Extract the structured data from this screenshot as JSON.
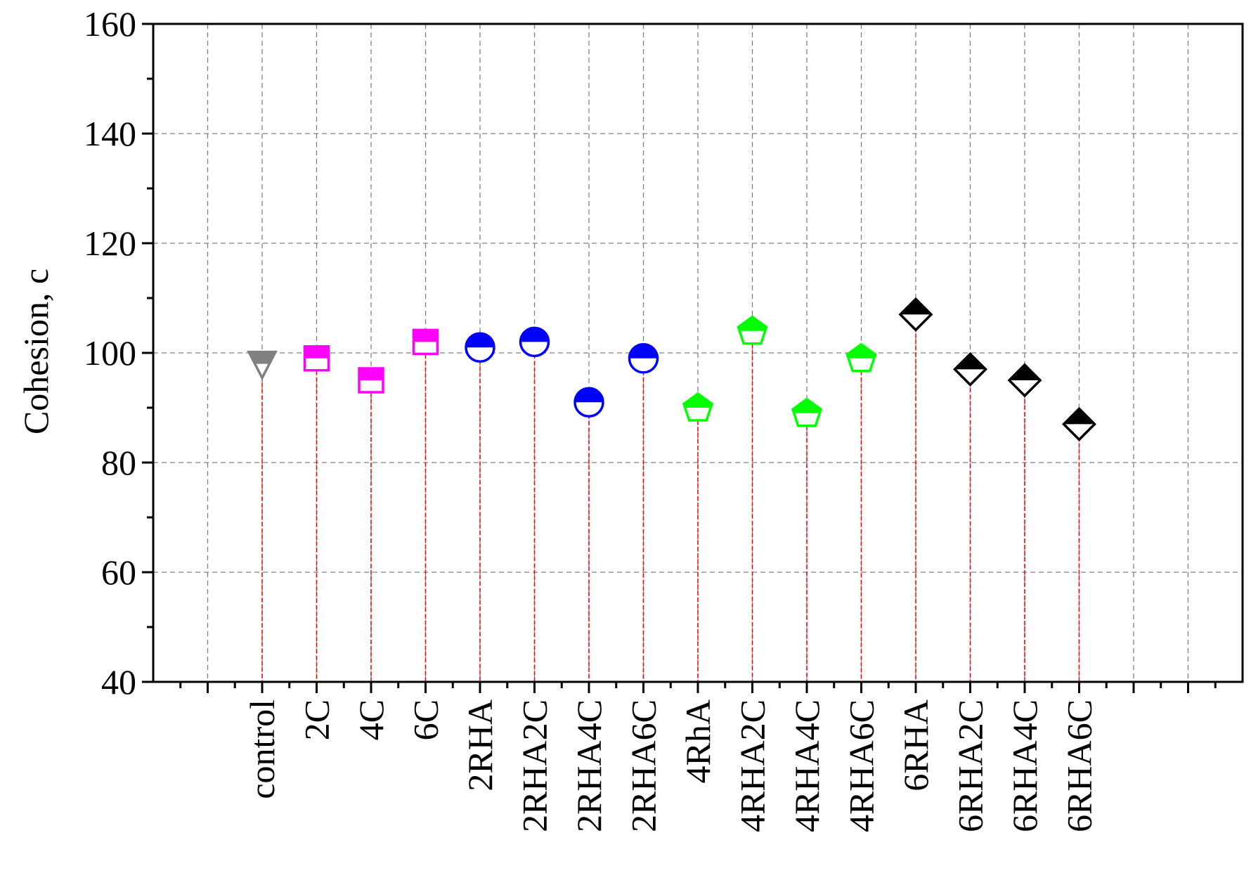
{
  "chart_data": {
    "type": "scatter",
    "ylabel": "Cohesion, c",
    "xlabel": "",
    "ylim": [
      40,
      160
    ],
    "yticks": [
      40,
      60,
      80,
      100,
      120,
      140,
      160
    ],
    "grid": true,
    "legend": "none",
    "drop_lines": true,
    "categories": [
      "control",
      "2C",
      "4C",
      "6C",
      "2RHA",
      "2RHA2C",
      "2RHA4C",
      "2RHA6C",
      "4RhA",
      "4RHA2C",
      "4RHA4C",
      "4RHA6C",
      "6RHA",
      "6RHA2C",
      "6RHA4C",
      "6RHA6C"
    ],
    "values": [
      98,
      99,
      95,
      102,
      101,
      102,
      91,
      99,
      90,
      104,
      89,
      99,
      107,
      97,
      95,
      87
    ],
    "marker_shapes": [
      "triangle-down",
      "square",
      "square",
      "square",
      "circle",
      "circle",
      "circle",
      "circle",
      "pentagon",
      "pentagon",
      "pentagon",
      "pentagon",
      "diamond",
      "diamond",
      "diamond",
      "diamond"
    ],
    "marker_colors": [
      "#808080",
      "#ff00ff",
      "#ff00ff",
      "#ff00ff",
      "#0000ff",
      "#0000ff",
      "#0000ff",
      "#0000ff",
      "#00ff00",
      "#00ff00",
      "#00ff00",
      "#00ff00",
      "#000000",
      "#000000",
      "#000000",
      "#000000"
    ],
    "drop_line_color": "#ff0000",
    "grid_color": "#808080"
  }
}
